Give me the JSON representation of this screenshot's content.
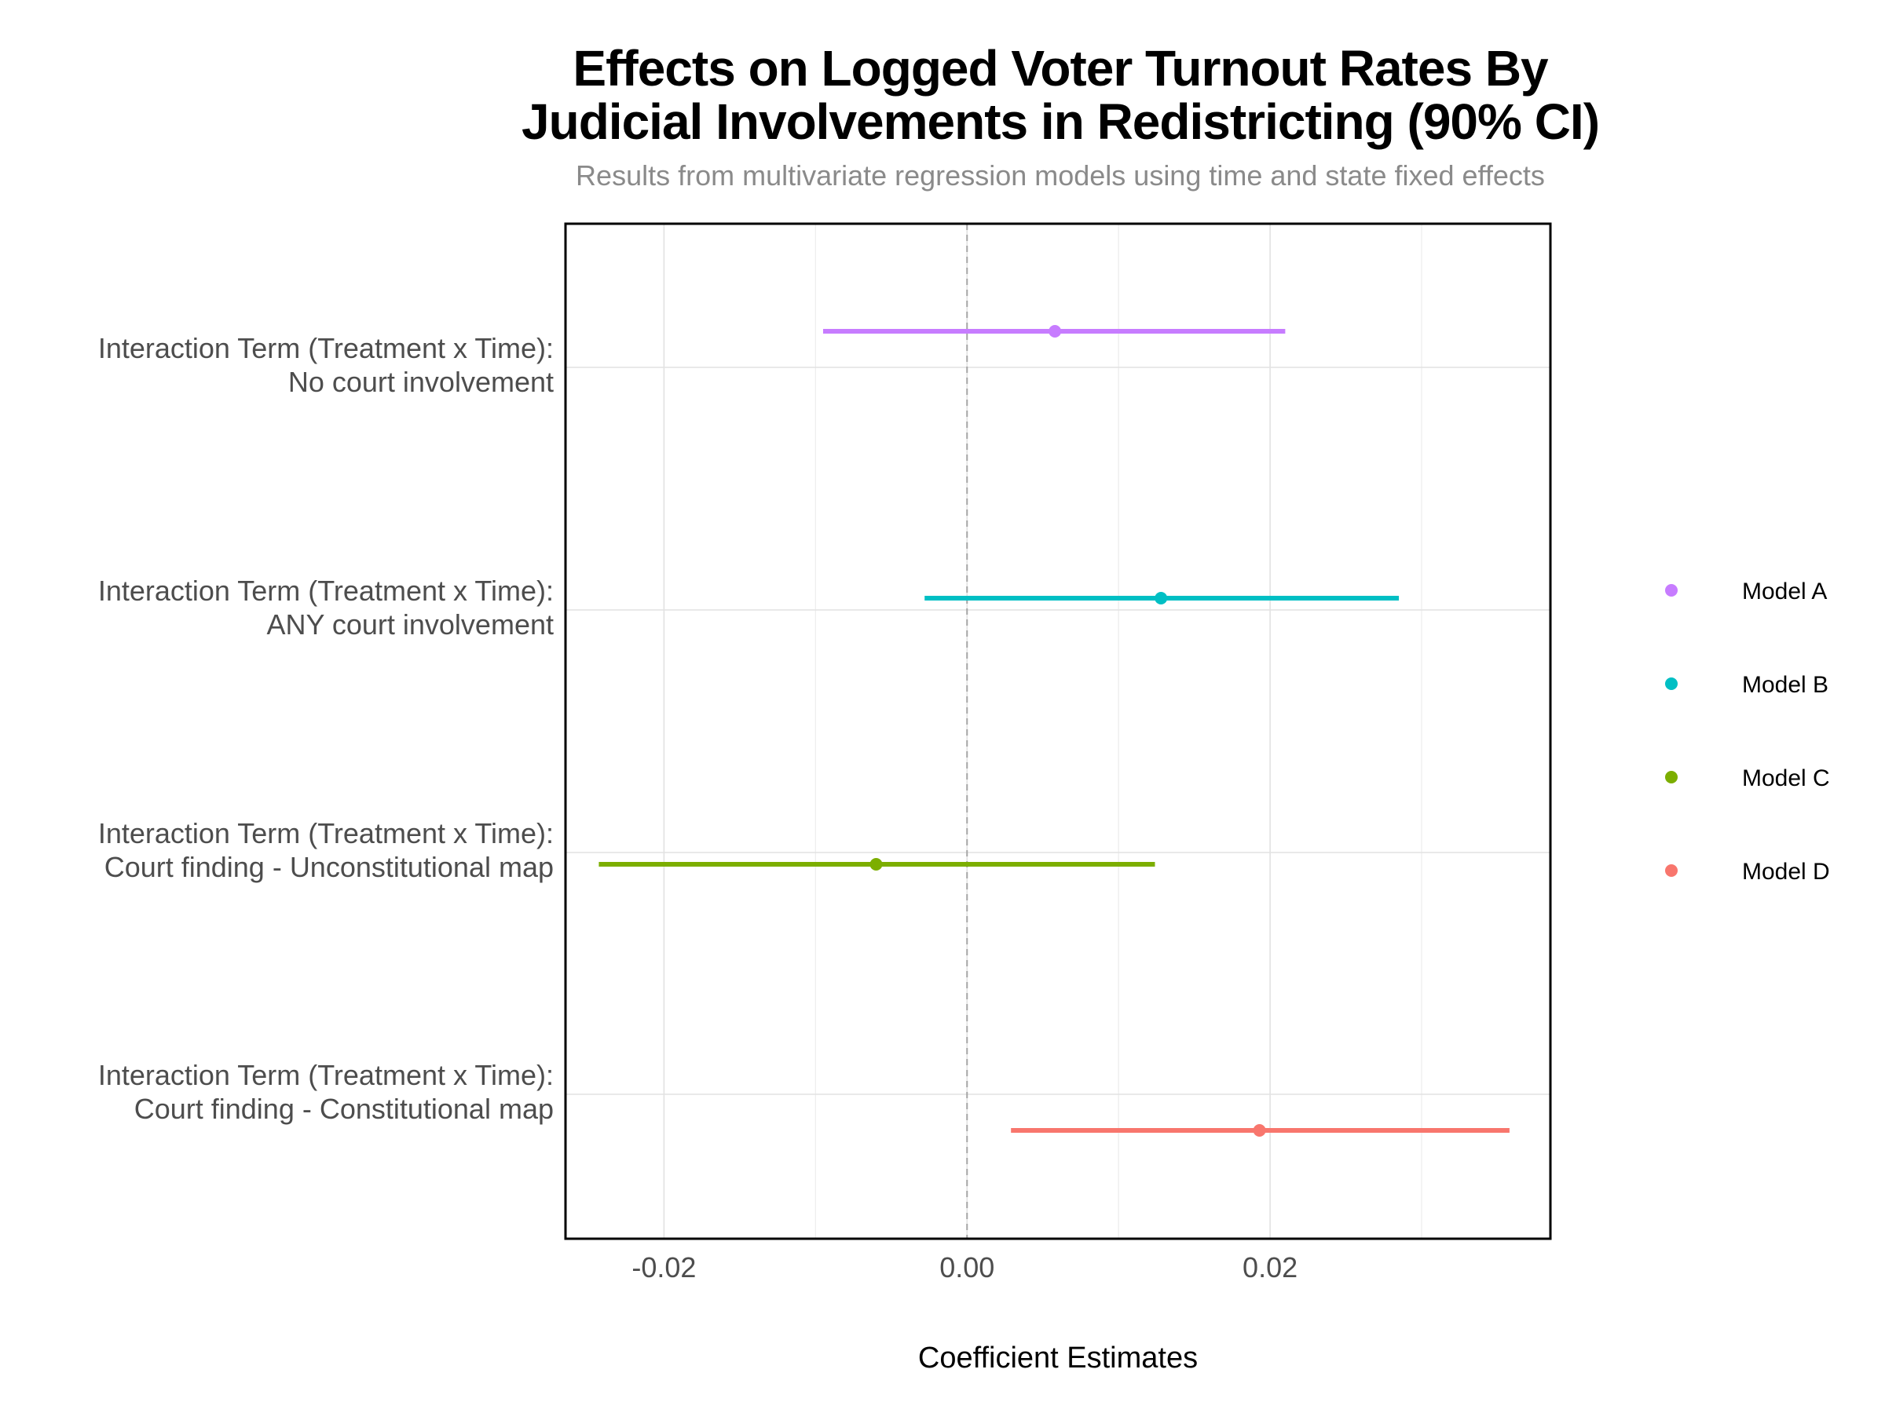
{
  "chart_data": {
    "type": "scatter",
    "subtype": "coefficient-plot",
    "title": [
      "Effects on Logged Voter Turnout Rates By",
      "Judicial Involvements in Redistricting (90% CI)"
    ],
    "subtitle": "Results from multivariate regression models using time and state fixed effects",
    "xlabel": "Coefficient Estimates",
    "ylabel": "",
    "xlim": [
      -0.0265,
      0.0385
    ],
    "x_ticks": [
      -0.02,
      0.0,
      0.02
    ],
    "x_tick_labels": [
      "-0.02",
      "0.00",
      "0.02"
    ],
    "reference_line": 0.0,
    "grid": true,
    "legend_position": "right",
    "categories": [
      [
        "Interaction Term (Treatment x Time):",
        "No court involvement"
      ],
      [
        "Interaction Term (Treatment x Time):",
        "ANY court involvement"
      ],
      [
        "Interaction Term (Treatment x Time):",
        "Court finding - Unconstitutional map"
      ],
      [
        "Interaction Term (Treatment x Time):",
        "Court finding - Constitutional map"
      ]
    ],
    "series": [
      {
        "name": "Model A",
        "color": "#c77cff",
        "category_index": 0,
        "estimate": 0.0058,
        "ci_low": -0.0095,
        "ci_high": 0.021
      },
      {
        "name": "Model B",
        "color": "#00bfc4",
        "category_index": 1,
        "estimate": 0.0128,
        "ci_low": -0.0028,
        "ci_high": 0.0285
      },
      {
        "name": "Model C",
        "color": "#7cae00",
        "category_index": 2,
        "estimate": -0.006,
        "ci_low": -0.0243,
        "ci_high": 0.0124
      },
      {
        "name": "Model D",
        "color": "#f8766d",
        "category_index": 3,
        "estimate": 0.0193,
        "ci_low": 0.0029,
        "ci_high": 0.0358
      }
    ]
  }
}
